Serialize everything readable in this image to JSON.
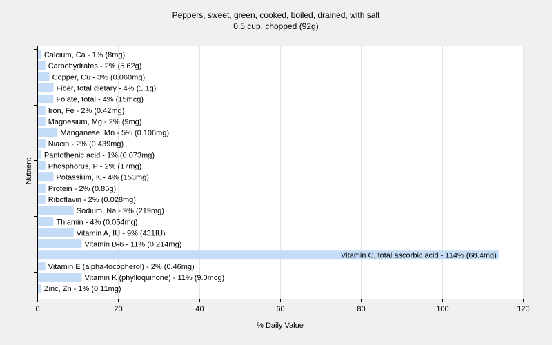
{
  "chart_data": {
    "type": "bar",
    "orientation": "horizontal",
    "title": "Peppers, sweet, green, cooked, boiled, drained, with salt",
    "subtitle": "0.5 cup, chopped (92g)",
    "xlabel": "% Daily Value",
    "ylabel": "Nutrient",
    "xlim": [
      0,
      120
    ],
    "xticks": [
      0,
      20,
      40,
      60,
      80,
      100,
      120
    ],
    "grid": true,
    "bar_color": "#c4dcf6",
    "categories": [
      "Calcium, Ca",
      "Carbohydrates",
      "Copper, Cu",
      "Fiber, total dietary",
      "Folate, total",
      "Iron, Fe",
      "Magnesium, Mg",
      "Manganese, Mn",
      "Niacin",
      "Pantothenic acid",
      "Phosphorus, P",
      "Potassium, K",
      "Protein",
      "Riboflavin",
      "Sodium, Na",
      "Thiamin",
      "Vitamin A, IU",
      "Vitamin B-6",
      "Vitamin C, total ascorbic acid",
      "Vitamin E (alpha-tocopherol)",
      "Vitamin K (phylloquinone)",
      "Zinc, Zn"
    ],
    "values": [
      1,
      2,
      3,
      4,
      4,
      2,
      2,
      5,
      2,
      1,
      2,
      4,
      2,
      2,
      9,
      4,
      9,
      11,
      114,
      2,
      11,
      1
    ],
    "data_labels": [
      "Calcium, Ca - 1% (8mg)",
      "Carbohydrates - 2% (5.62g)",
      "Copper, Cu - 3% (0.060mg)",
      "Fiber, total dietary - 4% (1.1g)",
      "Folate, total - 4% (15mcg)",
      "Iron, Fe - 2% (0.42mg)",
      "Magnesium, Mg - 2% (9mg)",
      "Manganese, Mn - 5% (0.106mg)",
      "Niacin - 2% (0.439mg)",
      "Pantothenic acid - 1% (0.073mg)",
      "Phosphorus, P - 2% (17mg)",
      "Potassium, K - 4% (153mg)",
      "Protein - 2% (0.85g)",
      "Riboflavin - 2% (0.028mg)",
      "Sodium, Na - 9% (219mg)",
      "Thiamin - 4% (0.054mg)",
      "Vitamin A, IU - 9% (431IU)",
      "Vitamin B-6 - 11% (0.214mg)",
      "Vitamin C, total ascorbic acid - 114% (68.4mg)",
      "Vitamin E (alpha-tocopherol) - 2% (0.46mg)",
      "Vitamin K (phylloquinone) - 11% (9.0mcg)",
      "Zinc, Zn - 1% (0.11mg)"
    ]
  }
}
